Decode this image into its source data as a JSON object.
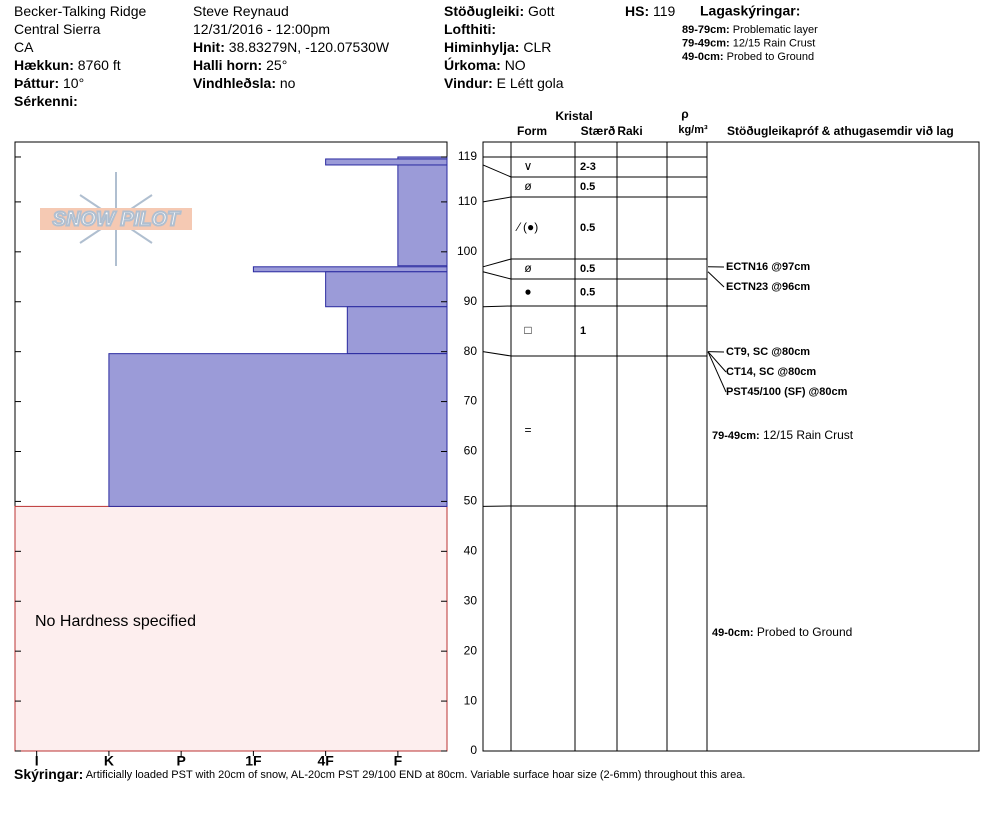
{
  "header": {
    "columns": [
      [
        {
          "text": "Becker-Talking Ridge"
        },
        {
          "text": "Central Sierra"
        },
        {
          "text": "CA"
        },
        {
          "label": "Hækkun:",
          "value": "8760 ft"
        },
        {
          "label": "Þáttur:",
          "value": "10°"
        },
        {
          "label": "Sérkenni:"
        }
      ],
      [
        {
          "text": "Steve Reynaud"
        },
        {
          "text": "12/31/2016 - 12:00pm"
        },
        {
          "label": "Hnit:",
          "value": "38.83279N, -120.07530W"
        },
        {
          "label": "Halli horn:",
          "value": "25°"
        },
        {
          "label": "Vindhleðsla:",
          "value": "no"
        }
      ],
      [
        {
          "label": "Stöðugleiki:",
          "value": "Gott"
        },
        {
          "label": "Lofthiti:"
        },
        {
          "label": "Himinhylja:",
          "value": "CLR"
        },
        {
          "label": "Úrkoma:",
          "value": "NO"
        },
        {
          "label": "Vindur:",
          "value": "E Létt gola"
        }
      ]
    ],
    "hs": {
      "label": "HS:",
      "value": 119
    },
    "legend": {
      "title": "Lagaskýringar:",
      "items": [
        {
          "label": "89-79cm:",
          "value": "Problematic layer"
        },
        {
          "label": "79-49cm:",
          "value": "12/15 Rain Crust"
        },
        {
          "label": "49-0cm:",
          "value": "Probed to Ground"
        }
      ]
    }
  },
  "logo": "SNOW PILOT",
  "hardness": {
    "labels": [
      "I",
      "K",
      "P",
      "1F",
      "4F",
      "F"
    ],
    "xlim": [
      -0.3,
      5.68
    ],
    "layers": [
      {
        "top": 119,
        "bottom": 97.2,
        "hardness": 5
      },
      {
        "top": 118.6,
        "bottom": 117.4,
        "hardness": 4
      },
      {
        "top": 97,
        "bottom": 96,
        "hardness": 3
      },
      {
        "top": 96,
        "bottom": 89,
        "hardness": 4
      },
      {
        "top": 89,
        "bottom": 79.6,
        "hardness": 4.3
      },
      {
        "top": 79.6,
        "bottom": 49,
        "hardness": 1
      }
    ],
    "no_hardness": {
      "top": 49,
      "bottom": 0,
      "text": "No Hardness specified"
    }
  },
  "depth": {
    "ylim": [
      0,
      122
    ],
    "ticks": [
      0,
      10,
      20,
      30,
      40,
      50,
      60,
      70,
      80,
      90,
      100,
      110,
      119
    ]
  },
  "crystals": {
    "title": "Kristal",
    "columns": [
      "Form",
      "Stærð",
      "Raki"
    ],
    "density": {
      "symbol": "ρ",
      "unit": "kg/m³"
    },
    "tests_title": "Stöðugleikapróf & athugasemdir við lag",
    "rows": [
      {
        "top": 119,
        "bottom": 117.4,
        "form": "∨",
        "size": "2-3"
      },
      {
        "top": 117.4,
        "bottom": 110,
        "form": "ø",
        "size": "0.5"
      },
      {
        "top": 110,
        "bottom": 97,
        "form": "⁄ (●)",
        "size": "0.5"
      },
      {
        "top": 97,
        "bottom": 96,
        "form": "ø",
        "size": "0.5"
      },
      {
        "top": 96,
        "bottom": 89,
        "form": "●",
        "size": "0.5"
      },
      {
        "top": 89,
        "bottom": 80,
        "form": "□",
        "size": "1"
      },
      {
        "top": 80,
        "bottom": 49,
        "form": "="
      },
      {
        "top": 49,
        "bottom": 0
      }
    ]
  },
  "tests": [
    {
      "text": "ECTN16 @97cm",
      "depth": 97
    },
    {
      "text": "ECTN23 @96cm",
      "depth": 96
    },
    {
      "text": "CT9, SC @80cm",
      "depth": 80
    },
    {
      "text": "CT14, SC @80cm",
      "depth": 80
    },
    {
      "text": "PST45/100 (SF) @80cm",
      "depth": 80
    }
  ],
  "comments": [
    {
      "label": "79-49cm:",
      "value": "12/15 Rain Crust"
    },
    {
      "label": "49-0cm:",
      "value": "Probed to Ground"
    }
  ],
  "footer": {
    "label": "Skýringar:",
    "value": "Artificially loaded PST with 20cm of snow, AL-20cm PST 29/100 END at 80cm.  Variable surface hoar size (2-6mm) throughout this area."
  }
}
